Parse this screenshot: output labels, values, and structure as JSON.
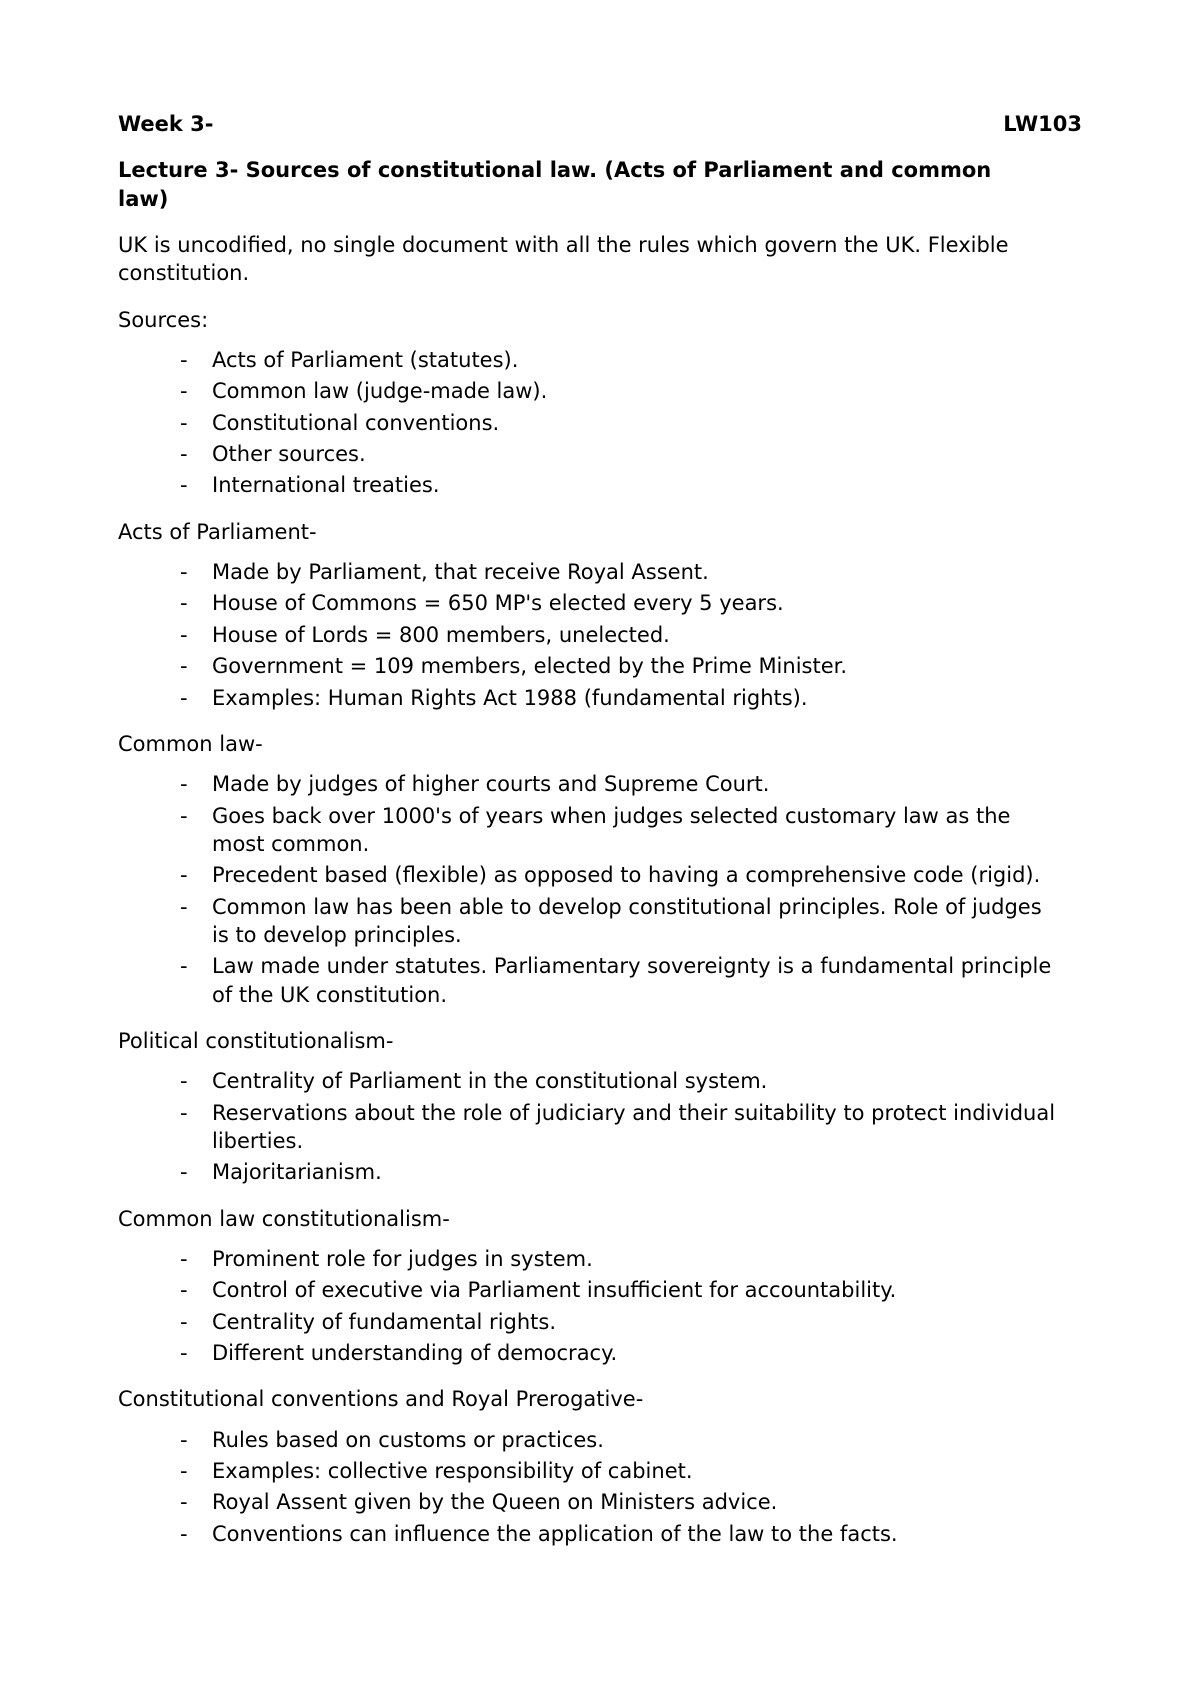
{
  "header": {
    "left": "Week 3-",
    "right": "LW103"
  },
  "lecture_title": "Lecture 3- Sources of constitutional law. (Acts of Parliament and common law)",
  "intro": "UK is uncodified, no single document with all the rules which govern the UK. Flexible constitution.",
  "sections": {
    "sources": {
      "label": "Sources:",
      "items": [
        "Acts of Parliament (statutes).",
        "Common law (judge-made law).",
        "Constitutional conventions.",
        "Other sources.",
        "International treaties."
      ]
    },
    "acts": {
      "label": "Acts of Parliament-",
      "items": [
        "Made by Parliament, that receive Royal Assent.",
        "House of Commons = 650 MP's elected every 5 years.",
        "House of Lords = 800 members, unelected.",
        "Government = 109 members, elected by the Prime Minister.",
        "Examples: Human Rights Act 1988 (fundamental rights)."
      ]
    },
    "common_law": {
      "label": "Common law-",
      "items": [
        "Made by judges of higher courts and Supreme Court.",
        "Goes back over 1000's of years when judges selected customary law as the most common.",
        "Precedent based (flexible) as opposed to having a comprehensive code (rigid).",
        "Common law has been able to develop constitutional principles. Role of judges is to develop principles.",
        "Law made under statutes. Parliamentary sovereignty is a fundamental principle of the UK constitution."
      ]
    },
    "political": {
      "label": "Political constitutionalism-",
      "items": [
        "Centrality of Parliament in the constitutional system.",
        "Reservations about the role of judiciary and their suitability to protect individual liberties.",
        "Majoritarianism."
      ]
    },
    "cl_const": {
      "label": "Common law constitutionalism-",
      "items": [
        "Prominent role for judges in system.",
        "Control of executive via Parliament insufficient for accountability.",
        "Centrality of fundamental rights.",
        "Different understanding of democracy."
      ]
    },
    "conventions": {
      "label": "Constitutional conventions and Royal Prerogative-",
      "items": [
        "Rules based on customs or practices.",
        "Examples: collective responsibility of cabinet.",
        "Royal Assent given by the Queen on Ministers advice.",
        "Conventions can influence the application of the law to the facts."
      ]
    }
  }
}
